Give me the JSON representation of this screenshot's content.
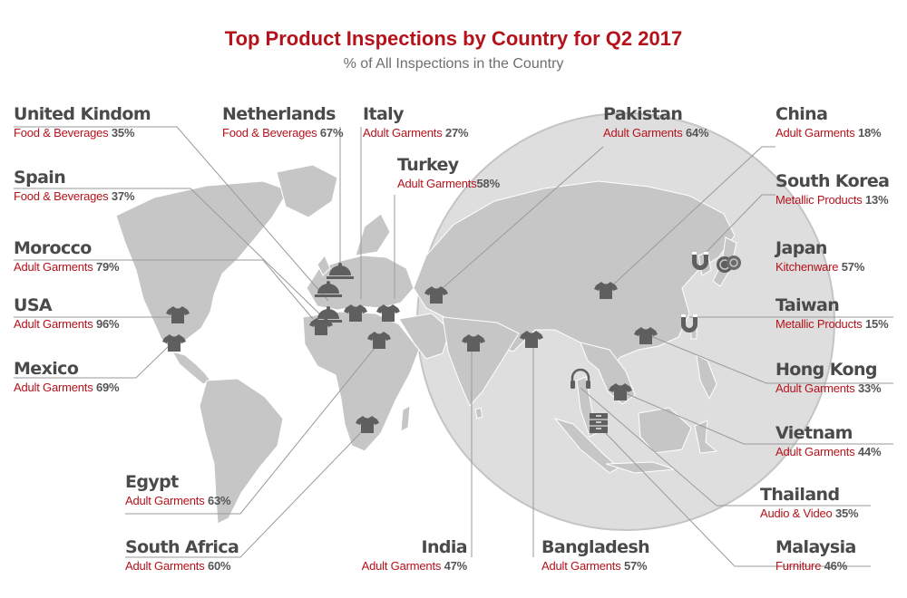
{
  "title": "Top Product Inspections by Country for Q2 2017",
  "subtitle": "% of All Inspections in the Country",
  "colors": {
    "accent": "#b5121b",
    "country_text": "#4a4a4a",
    "land": "#c6c6c6",
    "zoom_circle": "#dedede",
    "icon": "#5f5f5f",
    "leader": "#9a9a9a"
  },
  "countries": [
    {
      "id": "uk",
      "name": "United Kindom",
      "category": "Food & Beverages",
      "percent": "35%",
      "icon": "cloche-icon"
    },
    {
      "id": "netherlands",
      "name": "Netherlands",
      "category": "Food & Beverages",
      "percent": "67%",
      "icon": "cloche-icon"
    },
    {
      "id": "italy",
      "name": "Italy",
      "category": "Adult Garments",
      "percent": "27%",
      "icon": "tshirt-icon"
    },
    {
      "id": "turkey",
      "name": "Turkey",
      "category": "Adult Garments",
      "percent": "58%",
      "icon": "tshirt-icon"
    },
    {
      "id": "pakistan",
      "name": "Pakistan",
      "category": "Adult Garments",
      "percent": "64%",
      "icon": "tshirt-icon"
    },
    {
      "id": "china",
      "name": "China",
      "category": "Adult Garments",
      "percent": "18%",
      "icon": "tshirt-icon"
    },
    {
      "id": "spain",
      "name": "Spain",
      "category": "Food & Beverages",
      "percent": "37%",
      "icon": "cloche-icon"
    },
    {
      "id": "south_korea",
      "name": "South Korea",
      "category": "Metallic Products",
      "percent": "13%",
      "icon": "magnet-icon"
    },
    {
      "id": "morocco",
      "name": "Morocco",
      "category": "Adult Garments",
      "percent": "79%",
      "icon": "tshirt-icon"
    },
    {
      "id": "japan",
      "name": "Japan",
      "category": "Kitchenware",
      "percent": "57%",
      "icon": "pans-icon"
    },
    {
      "id": "usa",
      "name": "USA",
      "category": "Adult Garments",
      "percent": "96%",
      "icon": "tshirt-icon"
    },
    {
      "id": "taiwan",
      "name": "Taiwan",
      "category": "Metallic Products",
      "percent": "15%",
      "icon": "magnet-icon"
    },
    {
      "id": "mexico",
      "name": "Mexico",
      "category": "Adult Garments",
      "percent": "69%",
      "icon": "tshirt-icon"
    },
    {
      "id": "hong_kong",
      "name": "Hong Kong",
      "category": "Adult Garments",
      "percent": "33%",
      "icon": "tshirt-icon"
    },
    {
      "id": "vietnam",
      "name": "Vietnam",
      "category": "Adult Garments",
      "percent": "44%",
      "icon": "tshirt-icon"
    },
    {
      "id": "egypt",
      "name": "Egypt",
      "category": "Adult Garments",
      "percent": "63%",
      "icon": "tshirt-icon"
    },
    {
      "id": "thailand",
      "name": "Thailand",
      "category": "Audio & Video",
      "percent": "35%",
      "icon": "headphones-icon"
    },
    {
      "id": "south_africa",
      "name": "South Africa",
      "category": "Adult Garments",
      "percent": "60%",
      "icon": "tshirt-icon"
    },
    {
      "id": "india",
      "name": "India",
      "category": "Adult Garments",
      "percent": "47%",
      "icon": "tshirt-icon"
    },
    {
      "id": "bangladesh",
      "name": "Bangladesh",
      "category": "Adult Garments",
      "percent": "57%",
      "icon": "tshirt-icon"
    },
    {
      "id": "malaysia",
      "name": "Malaysia",
      "category": "Furniture",
      "percent": "46%",
      "icon": "cabinet-icon"
    }
  ]
}
